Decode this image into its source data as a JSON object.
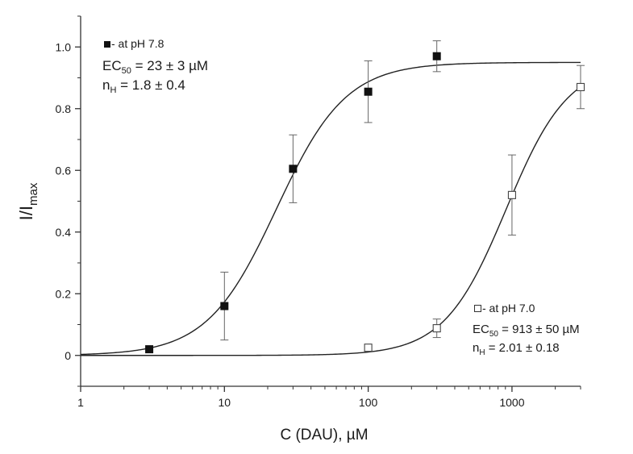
{
  "chart_data": {
    "type": "scatter",
    "xlabel": "C (DAU), µM",
    "ylabel": {
      "main": "I/I",
      "sub": "max"
    },
    "xscale": "log",
    "xlim": [
      1,
      3000
    ],
    "ylim": [
      -0.1,
      1.1
    ],
    "x_ticks": [
      1,
      10,
      100,
      1000
    ],
    "x_tick_labels": [
      "1",
      "10",
      "100",
      "1000"
    ],
    "y_ticks": [
      0,
      0.2,
      0.4,
      0.6,
      0.8,
      1.0
    ],
    "y_tick_labels": [
      "0",
      "0.2",
      "0.4",
      "0.6",
      "0.8",
      "1.0"
    ],
    "series": [
      {
        "name": "at pH 7.8",
        "marker": "filled-square",
        "x": [
          3,
          10,
          30,
          100,
          300
        ],
        "y": [
          0.02,
          0.16,
          0.605,
          0.855,
          0.97
        ],
        "err": [
          0,
          0.11,
          0.11,
          0.1,
          0.05
        ],
        "fit": {
          "EC50": 23,
          "nH": 1.8,
          "max": 0.95
        },
        "legend": {
          "marker_label": " - at pH 7.8",
          "ec_main": "EC",
          "ec_sub": "50",
          "ec_value": " = 23 ± 3 µM",
          "nh_main": "n",
          "nh_sub": "H",
          "nh_value": " = 1.8 ± 0.4"
        }
      },
      {
        "name": "at pH 7.0",
        "marker": "open-square",
        "x": [
          100,
          300,
          1000,
          3000
        ],
        "y": [
          0.025,
          0.088,
          0.52,
          0.87
        ],
        "err": [
          0,
          0.03,
          0.13,
          0.07
        ],
        "fit": {
          "EC50": 913,
          "nH": 2.01,
          "max": 0.95
        },
        "legend": {
          "marker_label": " - at pH 7.0",
          "ec_main": "EC",
          "ec_sub": "50",
          "ec_value": " = 913 ± 50 µM",
          "nh_main": "n",
          "nh_sub": "H",
          "nh_value": " = 2.01 ± 0.18"
        }
      }
    ],
    "legend_placement": [
      "top-left",
      "bottom-right"
    ],
    "grid": false
  }
}
